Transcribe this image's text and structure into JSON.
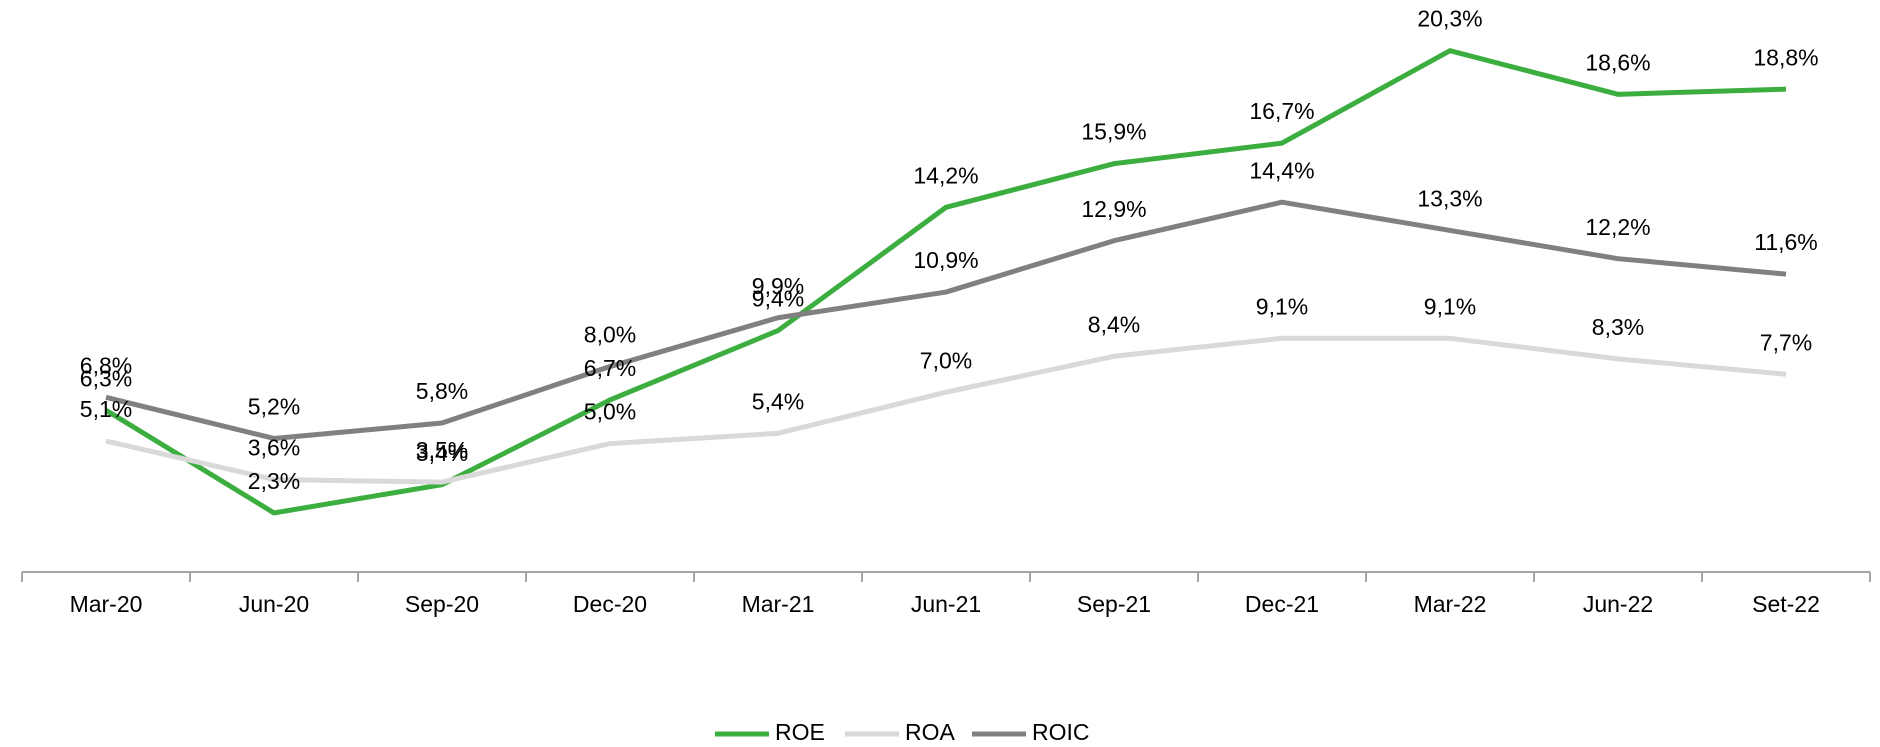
{
  "chart_data": {
    "type": "line",
    "categories": [
      "Mar-20",
      "Jun-20",
      "Sep-20",
      "Dec-20",
      "Mar-21",
      "Jun-21",
      "Sep-21",
      "Dec-21",
      "Mar-22",
      "Jun-22",
      "Set-22"
    ],
    "series": [
      {
        "name": "ROE",
        "color": "#3cae3f",
        "values": [
          6.3,
          2.3,
          3.4,
          6.7,
          9.4,
          14.2,
          15.9,
          16.7,
          20.3,
          18.6,
          18.8
        ],
        "value_labels": [
          "6,3%",
          "2,3%",
          "3,4%",
          "6,7%",
          "9,4%",
          "14,2%",
          "15,9%",
          "16,7%",
          "20,3%",
          "18,6%",
          "18,8%"
        ]
      },
      {
        "name": "ROA",
        "color": "#d9d9d9",
        "values": [
          5.1,
          3.6,
          3.5,
          5.0,
          5.4,
          7.0,
          8.4,
          9.1,
          9.1,
          8.3,
          7.7
        ],
        "value_labels": [
          "5,1%",
          "3,6%",
          "3,5%",
          "5,0%",
          "5,4%",
          "7,0%",
          "8,4%",
          "9,1%",
          "9,1%",
          "8,3%",
          "7,7%"
        ]
      },
      {
        "name": "ROIC",
        "color": "#808080",
        "values": [
          6.8,
          5.2,
          5.8,
          8.0,
          9.9,
          10.9,
          12.9,
          14.4,
          13.3,
          12.2,
          11.6
        ],
        "value_labels": [
          "6,8%",
          "5,2%",
          "5,8%",
          "8,0%",
          "9,9%",
          "10,9%",
          "12,9%",
          "14,4%",
          "13,3%",
          "12,2%",
          "11,6%"
        ]
      }
    ],
    "ylim": [
      0,
      22
    ],
    "legend": "bottom"
  }
}
